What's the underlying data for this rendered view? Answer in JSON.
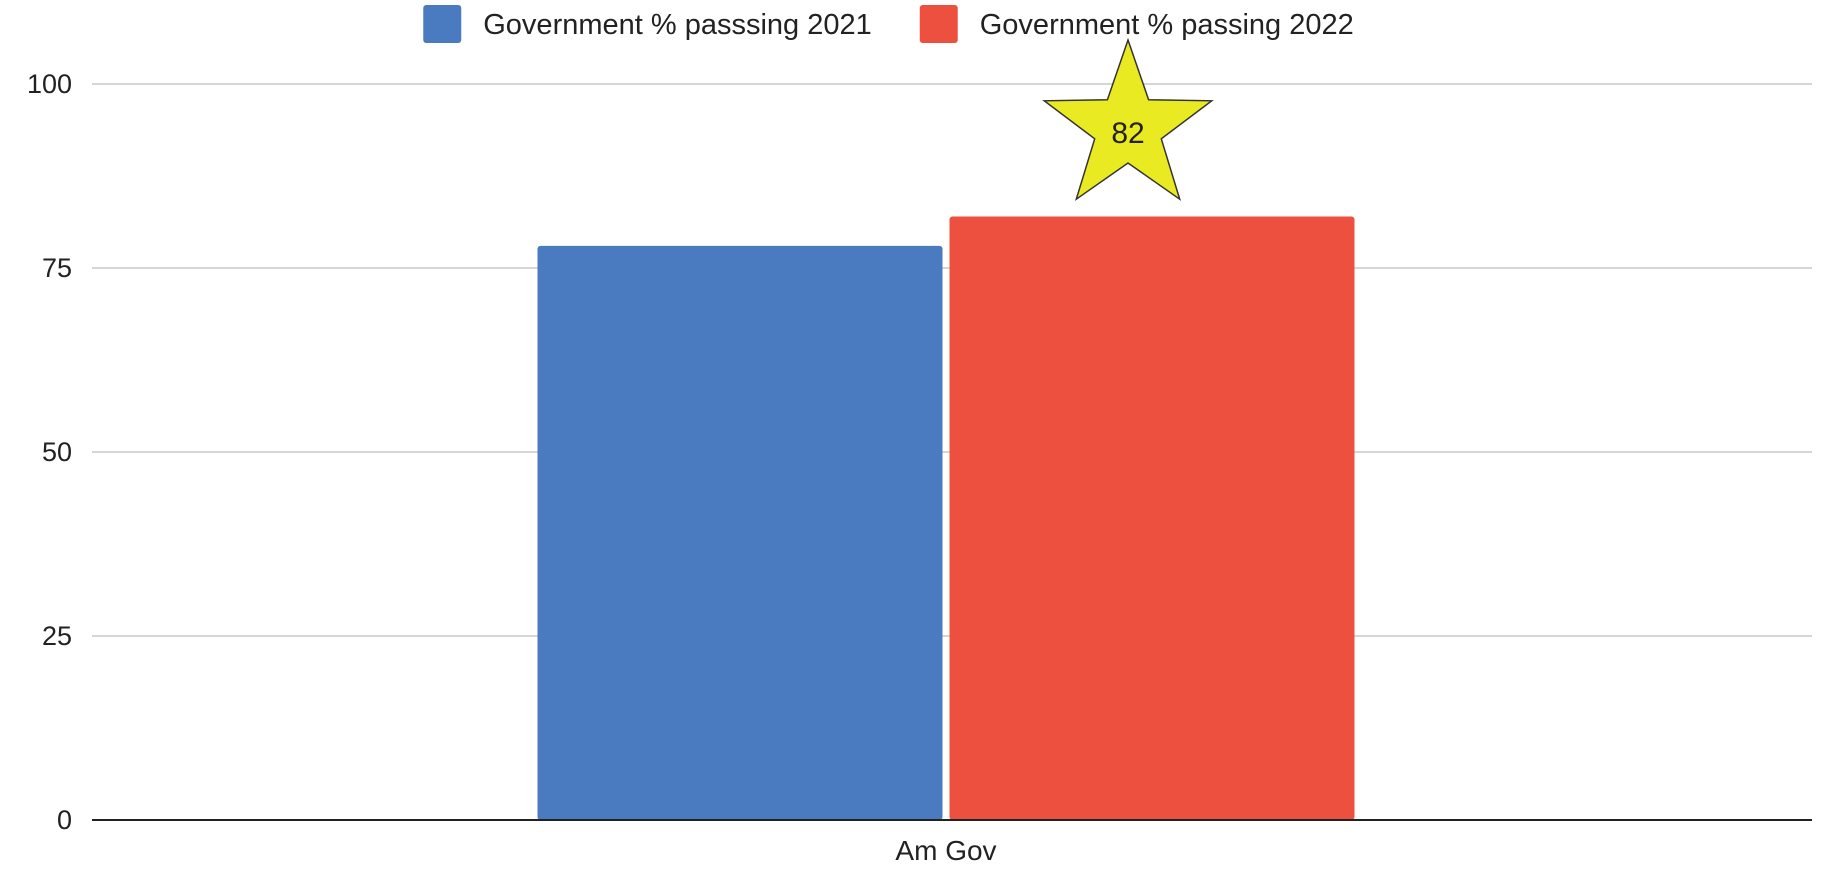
{
  "chart_data": {
    "type": "bar",
    "categories": [
      "Am Gov"
    ],
    "series": [
      {
        "name": "Government % passsing 2021",
        "values": [
          78
        ],
        "color": "#4a7bc0"
      },
      {
        "name": "Government % passing 2022",
        "values": [
          82
        ],
        "color": "#ee5040"
      }
    ],
    "ylim": [
      0,
      100
    ],
    "yticks": [
      "0",
      "25",
      "50",
      "75",
      "100"
    ],
    "grid": true,
    "legend": "top-center",
    "annotation": {
      "text": "82",
      "shape": "star",
      "color": "#eaea22",
      "series": 1,
      "category": 0
    }
  }
}
